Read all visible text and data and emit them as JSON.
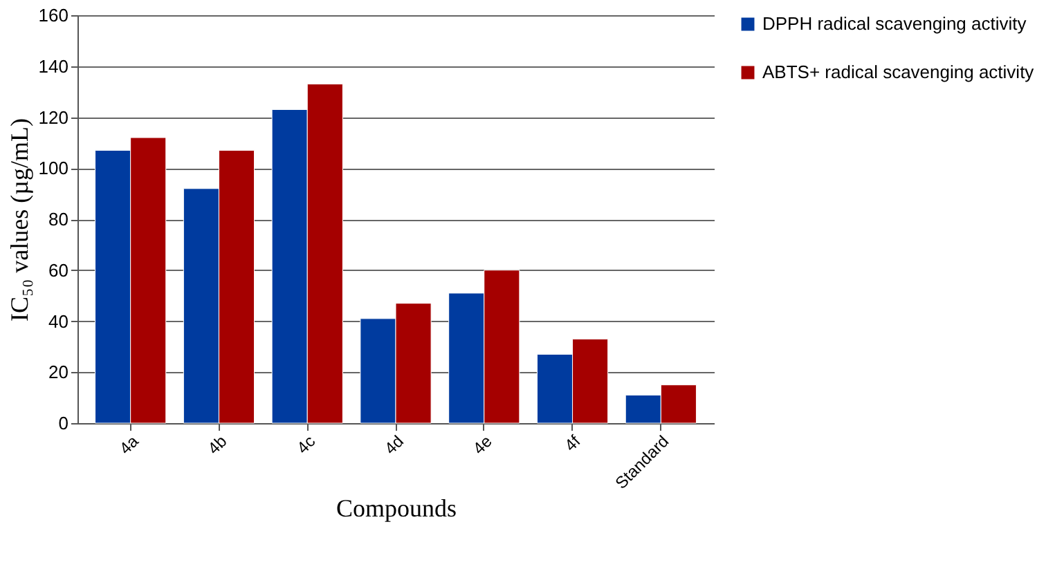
{
  "chart_data": {
    "type": "bar",
    "xlabel": "Compounds",
    "ylabel": "IC₅₀ values (µg/mL)",
    "categories": [
      "4a",
      "4b",
      "4c",
      "4d",
      "4e",
      "4f",
      "Standard"
    ],
    "series": [
      {
        "name": "DPPH radical scavenging activity",
        "color": "#003b9f",
        "values": [
          107,
          92,
          123,
          41,
          51,
          27,
          11
        ]
      },
      {
        "name": "ABTS+ radical scavenging activity",
        "color": "#a50000",
        "values": [
          112,
          107,
          133,
          47,
          60,
          33,
          15
        ]
      }
    ],
    "ylim": [
      0,
      160
    ],
    "yticks": [
      0,
      20,
      40,
      60,
      80,
      100,
      120,
      140,
      160
    ],
    "grid": "y",
    "legend": "right"
  }
}
